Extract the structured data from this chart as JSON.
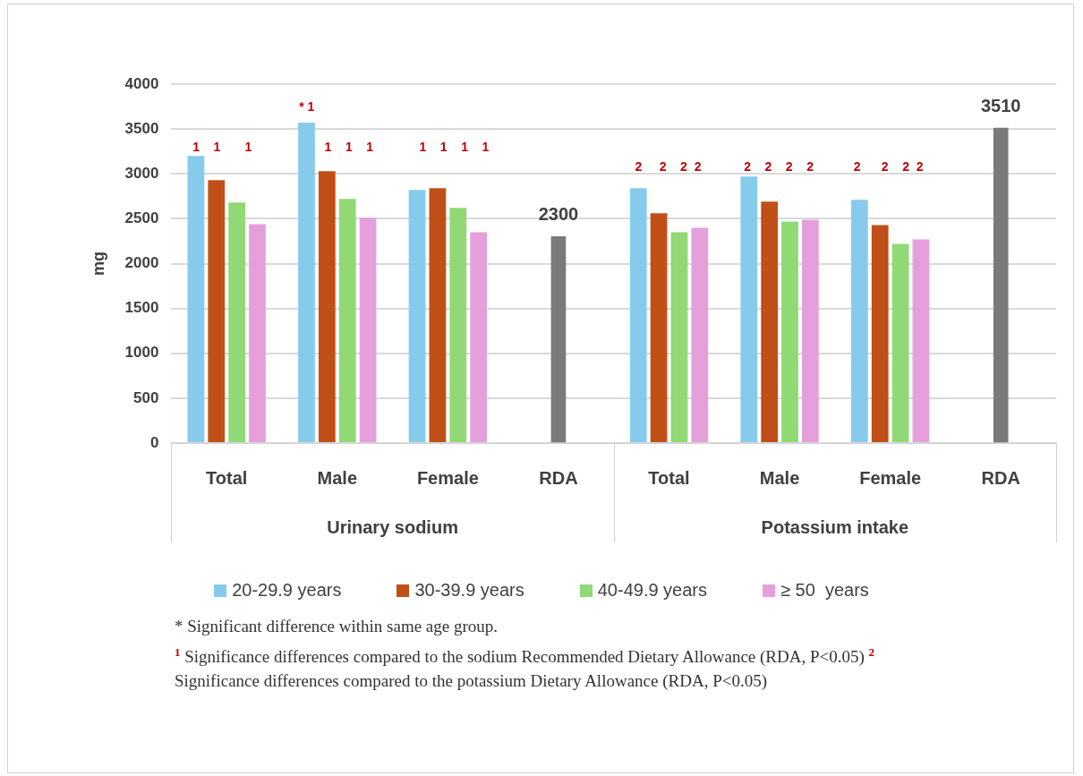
{
  "chart_data": {
    "type": "bar",
    "ylabel": "mg",
    "categories": [
      "Total",
      "Male",
      "Female",
      "RDA",
      "Total",
      "Male",
      "Female",
      "RDA"
    ],
    "ylim": [
      0,
      4000
    ],
    "yticks": [
      0,
      500,
      1000,
      1500,
      2000,
      2500,
      3000,
      3500,
      4000
    ],
    "grid": "y",
    "legend": "bottom",
    "series": [
      {
        "name": "20-29.9 years",
        "color": "#86cbec",
        "values": [
          3200,
          3570,
          2820,
          null,
          2840,
          2970,
          2710,
          null
        ]
      },
      {
        "name": "30-39.9 years",
        "color": "#c05018",
        "values": [
          2930,
          3030,
          2840,
          null,
          2560,
          2690,
          2430,
          null
        ]
      },
      {
        "name": "40-49.9 years",
        "color": "#90d975",
        "values": [
          2680,
          2720,
          2620,
          null,
          2350,
          2470,
          2220,
          null
        ]
      },
      {
        "name": "≥ 50  years",
        "color": "#e5a0dc",
        "values": [
          2440,
          2510,
          2350,
          null,
          2400,
          2490,
          2270,
          null
        ]
      },
      {
        "color": "#7a7a7a",
        "values": [
          null,
          null,
          null,
          2300,
          null,
          null,
          null,
          3510
        ],
        "value_labels": [
          null,
          null,
          null,
          "2300",
          null,
          null,
          null,
          "3510"
        ]
      }
    ],
    "annotations": [
      "Urinary sodium",
      "Potassium intake",
      "1    1       1",
      "* 1",
      "1    1    1",
      "1    1    1    1",
      "2     2    2  2",
      "2    2    2    2",
      "2      2    2  2",
      "* Significant difference within same age group.",
      "$^{1}$ Significance differences compared to the sodium Recommended Dietary    Allowance (RDA, P<0.05) $^{2}$ Significance differences compared to the potassium Dietary Allowance (RDA, P<0.05)"
    ]
  }
}
